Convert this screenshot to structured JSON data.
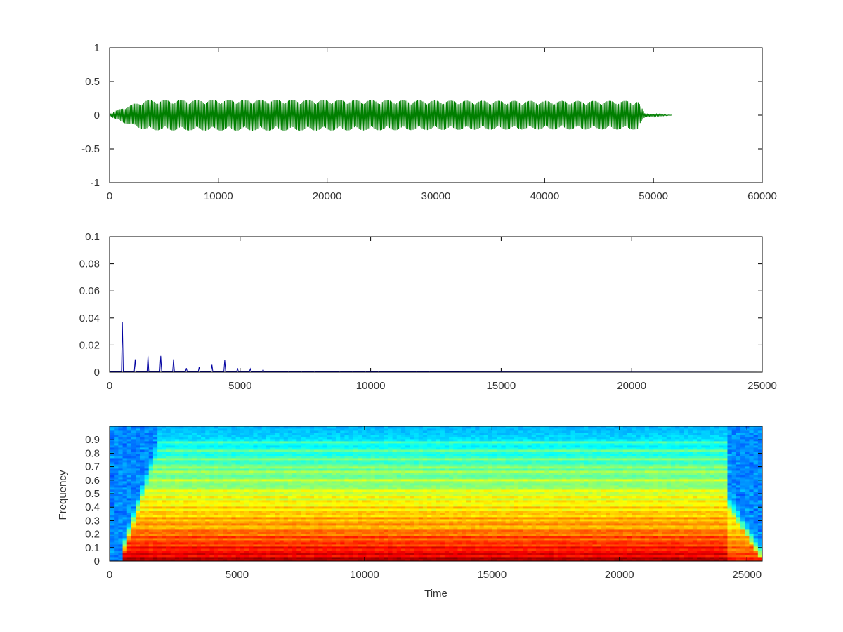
{
  "chart_data": [
    {
      "type": "line",
      "title": "",
      "xlabel": "",
      "ylabel": "",
      "xlim": [
        0,
        60000
      ],
      "ylim": [
        -1,
        1
      ],
      "xticks": [
        "0",
        "10000",
        "20000",
        "30000",
        "40000",
        "50000",
        "60000"
      ],
      "yticks": [
        "1",
        "0.5",
        "0",
        "-0.5",
        "-1"
      ],
      "grid": false,
      "series_color": "#007f00",
      "signal": {
        "start": 0,
        "end": 51700,
        "attack_end": 3500,
        "release_start": 48500,
        "release_end": 49200,
        "peak_amplitude": 0.23,
        "tail_amplitude": 0.03
      }
    },
    {
      "type": "line",
      "title": "",
      "xlabel": "",
      "ylabel": "",
      "xlim": [
        0,
        25000
      ],
      "ylim": [
        0,
        0.1
      ],
      "xticks": [
        "0",
        "5000",
        "10000",
        "15000",
        "20000",
        "25000"
      ],
      "yticks": [
        "0.1",
        "0.08",
        "0.06",
        "0.04",
        "0.02",
        "0"
      ],
      "grid": false,
      "series_color": "#0000a0",
      "peaks": {
        "x": [
          490,
          980,
          1470,
          1960,
          2450,
          2940,
          3430,
          3920,
          4410,
          4900,
          5390,
          5880,
          6860,
          7350,
          7840,
          8330,
          8820,
          9310,
          9800,
          10290,
          11760,
          12250
        ],
        "y": [
          0.037,
          0.0095,
          0.012,
          0.012,
          0.0095,
          0.003,
          0.004,
          0.0055,
          0.009,
          0.003,
          0.0025,
          0.002,
          0.0008,
          0.0008,
          0.0008,
          0.0008,
          0.0008,
          0.0008,
          0.0008,
          0.0008,
          0.0007,
          0.0007
        ]
      }
    },
    {
      "type": "heatmap",
      "title": "",
      "xlabel": "Time",
      "ylabel": "Frequency",
      "xlim": [
        0,
        25600
      ],
      "ylim": [
        0,
        1
      ],
      "xticks": [
        "0",
        "5000",
        "10000",
        "15000",
        "20000",
        "25000"
      ],
      "yticks": [
        "0.9",
        "0.8",
        "0.7",
        "0.6",
        "0.5",
        "0.4",
        "0.3",
        "0.2",
        "0.1",
        "0"
      ],
      "colormap": "jet",
      "harmonic_bands": [
        0.02,
        0.06,
        0.1,
        0.14,
        0.18,
        0.22,
        0.28,
        0.32,
        0.36,
        0.4,
        0.44,
        0.48,
        0.52,
        0.6,
        0.66,
        0.7,
        0.76,
        0.82,
        0.88
      ],
      "note_onset": 500,
      "note_full": 1800,
      "note_end": 24300,
      "tail_end": 25600
    }
  ]
}
